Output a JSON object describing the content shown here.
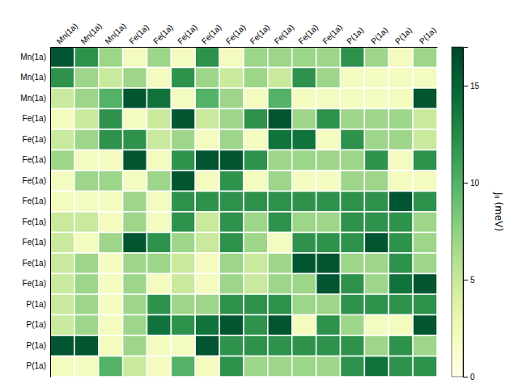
{
  "chart_data": {
    "type": "heatmap",
    "row_labels": [
      "Mn(1a)",
      "Mn(1a)",
      "Mn(1a)",
      "Fe(1a)",
      "Fe(1a)",
      "Fe(1a)",
      "Fe(1a)",
      "Fe(1a)",
      "Fe(1a)",
      "Fe(1a)",
      "Fe(1a)",
      "Fe(1a)",
      "P(1a)",
      "P(1a)",
      "P(1a)",
      "P(1a)"
    ],
    "col_labels": [
      "Mn(1a)",
      "Mn(1a)",
      "Mn(1a)",
      "Fe(1a)",
      "Fe(1a)",
      "Fe(1a)",
      "Fe(1a)",
      "Fe(1a)",
      "Fe(1a)",
      "Fe(1a)",
      "Fe(1a)",
      "Fe(1a)",
      "P(1a)",
      "P(1a)",
      "P(1a)",
      "P(1a)"
    ],
    "colorbar_label": "Jᵢⱼ (meV)",
    "colorbar_range": [
      0,
      17
    ],
    "colorbar_ticks": [
      0,
      5,
      10,
      15
    ],
    "color": "YlGn",
    "values": [
      [
        16,
        12,
        7,
        2,
        7,
        2,
        12,
        2,
        7,
        7,
        7,
        7,
        12,
        7,
        2,
        7
      ],
      [
        12,
        7,
        5,
        7,
        2,
        12,
        7,
        5,
        7,
        5,
        12,
        7,
        2,
        2,
        2,
        2
      ],
      [
        5,
        7,
        10,
        16,
        14,
        2,
        10,
        7,
        2,
        10,
        2,
        2,
        2,
        2,
        2,
        16
      ],
      [
        2,
        5,
        12,
        2,
        5,
        16,
        5,
        7,
        12,
        16,
        7,
        12,
        7,
        7,
        7,
        5
      ],
      [
        5,
        7,
        12,
        12,
        5,
        7,
        2,
        7,
        2,
        14,
        14,
        2,
        12,
        7,
        7,
        5
      ],
      [
        7,
        2,
        2,
        16,
        2,
        12,
        16,
        16,
        12,
        7,
        7,
        7,
        7,
        12,
        2,
        12
      ],
      [
        2,
        7,
        7,
        2,
        7,
        16,
        2,
        12,
        2,
        7,
        2,
        2,
        7,
        7,
        2,
        2
      ],
      [
        2,
        2,
        2,
        7,
        2,
        12,
        12,
        12,
        12,
        12,
        12,
        12,
        12,
        12,
        16,
        12
      ],
      [
        5,
        5,
        2,
        7,
        2,
        12,
        5,
        12,
        7,
        12,
        7,
        7,
        12,
        12,
        12,
        7
      ],
      [
        5,
        2,
        7,
        16,
        12,
        7,
        5,
        12,
        7,
        2,
        12,
        12,
        12,
        16,
        12,
        7
      ],
      [
        5,
        7,
        2,
        7,
        7,
        5,
        2,
        7,
        5,
        7,
        16,
        16,
        7,
        7,
        12,
        7
      ],
      [
        5,
        7,
        2,
        7,
        2,
        5,
        2,
        7,
        5,
        7,
        7,
        16,
        12,
        7,
        14,
        16
      ],
      [
        5,
        7,
        2,
        7,
        12,
        7,
        7,
        12,
        12,
        12,
        7,
        7,
        12,
        12,
        12,
        12
      ],
      [
        5,
        7,
        2,
        7,
        14,
        12,
        14,
        16,
        12,
        16,
        2,
        12,
        7,
        2,
        2,
        16
      ],
      [
        16,
        16,
        2,
        7,
        2,
        2,
        16,
        12,
        12,
        12,
        12,
        12,
        12,
        7,
        12,
        7
      ],
      [
        2,
        2,
        10,
        5,
        2,
        10,
        2,
        12,
        7,
        7,
        7,
        7,
        12,
        14,
        12,
        12
      ]
    ]
  }
}
